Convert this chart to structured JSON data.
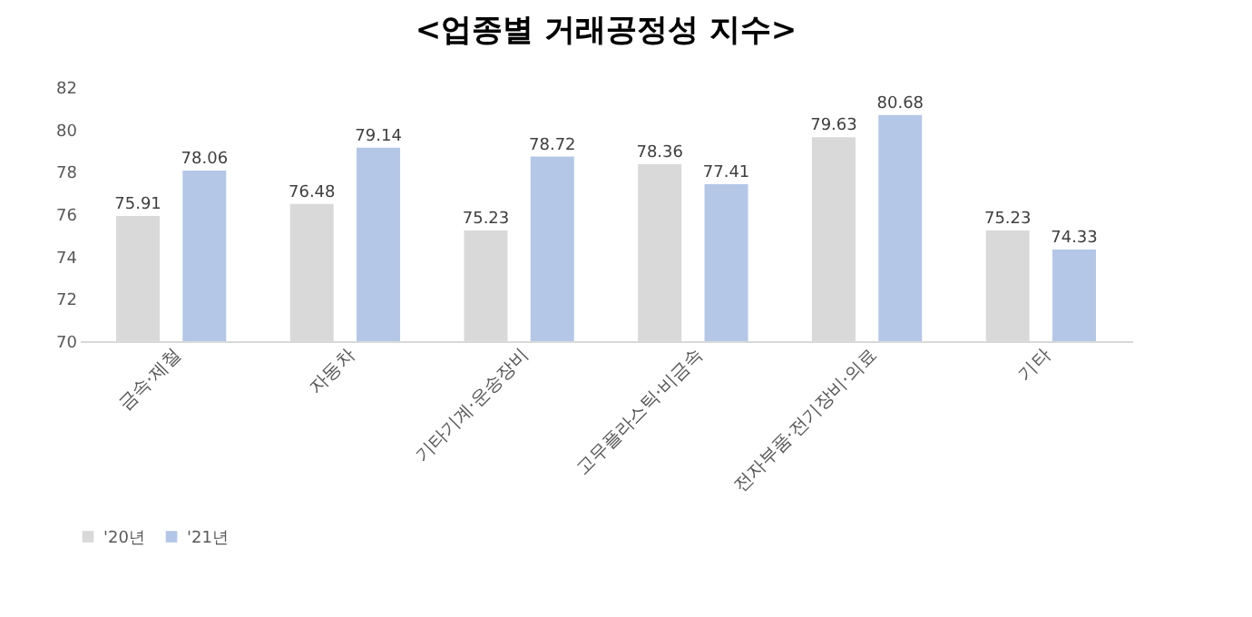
{
  "chart_data": {
    "type": "bar",
    "title": "<업종별 거래공정성 지수>",
    "categories": [
      "금속·제철",
      "자동차",
      "기타기계·운송장비",
      "고무플라스틱·비금속",
      "전자부품·전기장비·의료",
      "기타"
    ],
    "series": [
      {
        "name": "'20년",
        "color": "#d9d9d9",
        "values": [
          75.91,
          76.48,
          75.23,
          78.36,
          79.63,
          75.23
        ]
      },
      {
        "name": "'21년",
        "color": "#b4c7e7",
        "values": [
          78.06,
          79.14,
          78.72,
          77.41,
          80.68,
          74.33
        ]
      }
    ],
    "ylim": [
      70,
      82
    ],
    "yticks": [
      70,
      72,
      74,
      76,
      78,
      80,
      82
    ],
    "grid": false,
    "data_labels": true,
    "legend": "bottom"
  }
}
